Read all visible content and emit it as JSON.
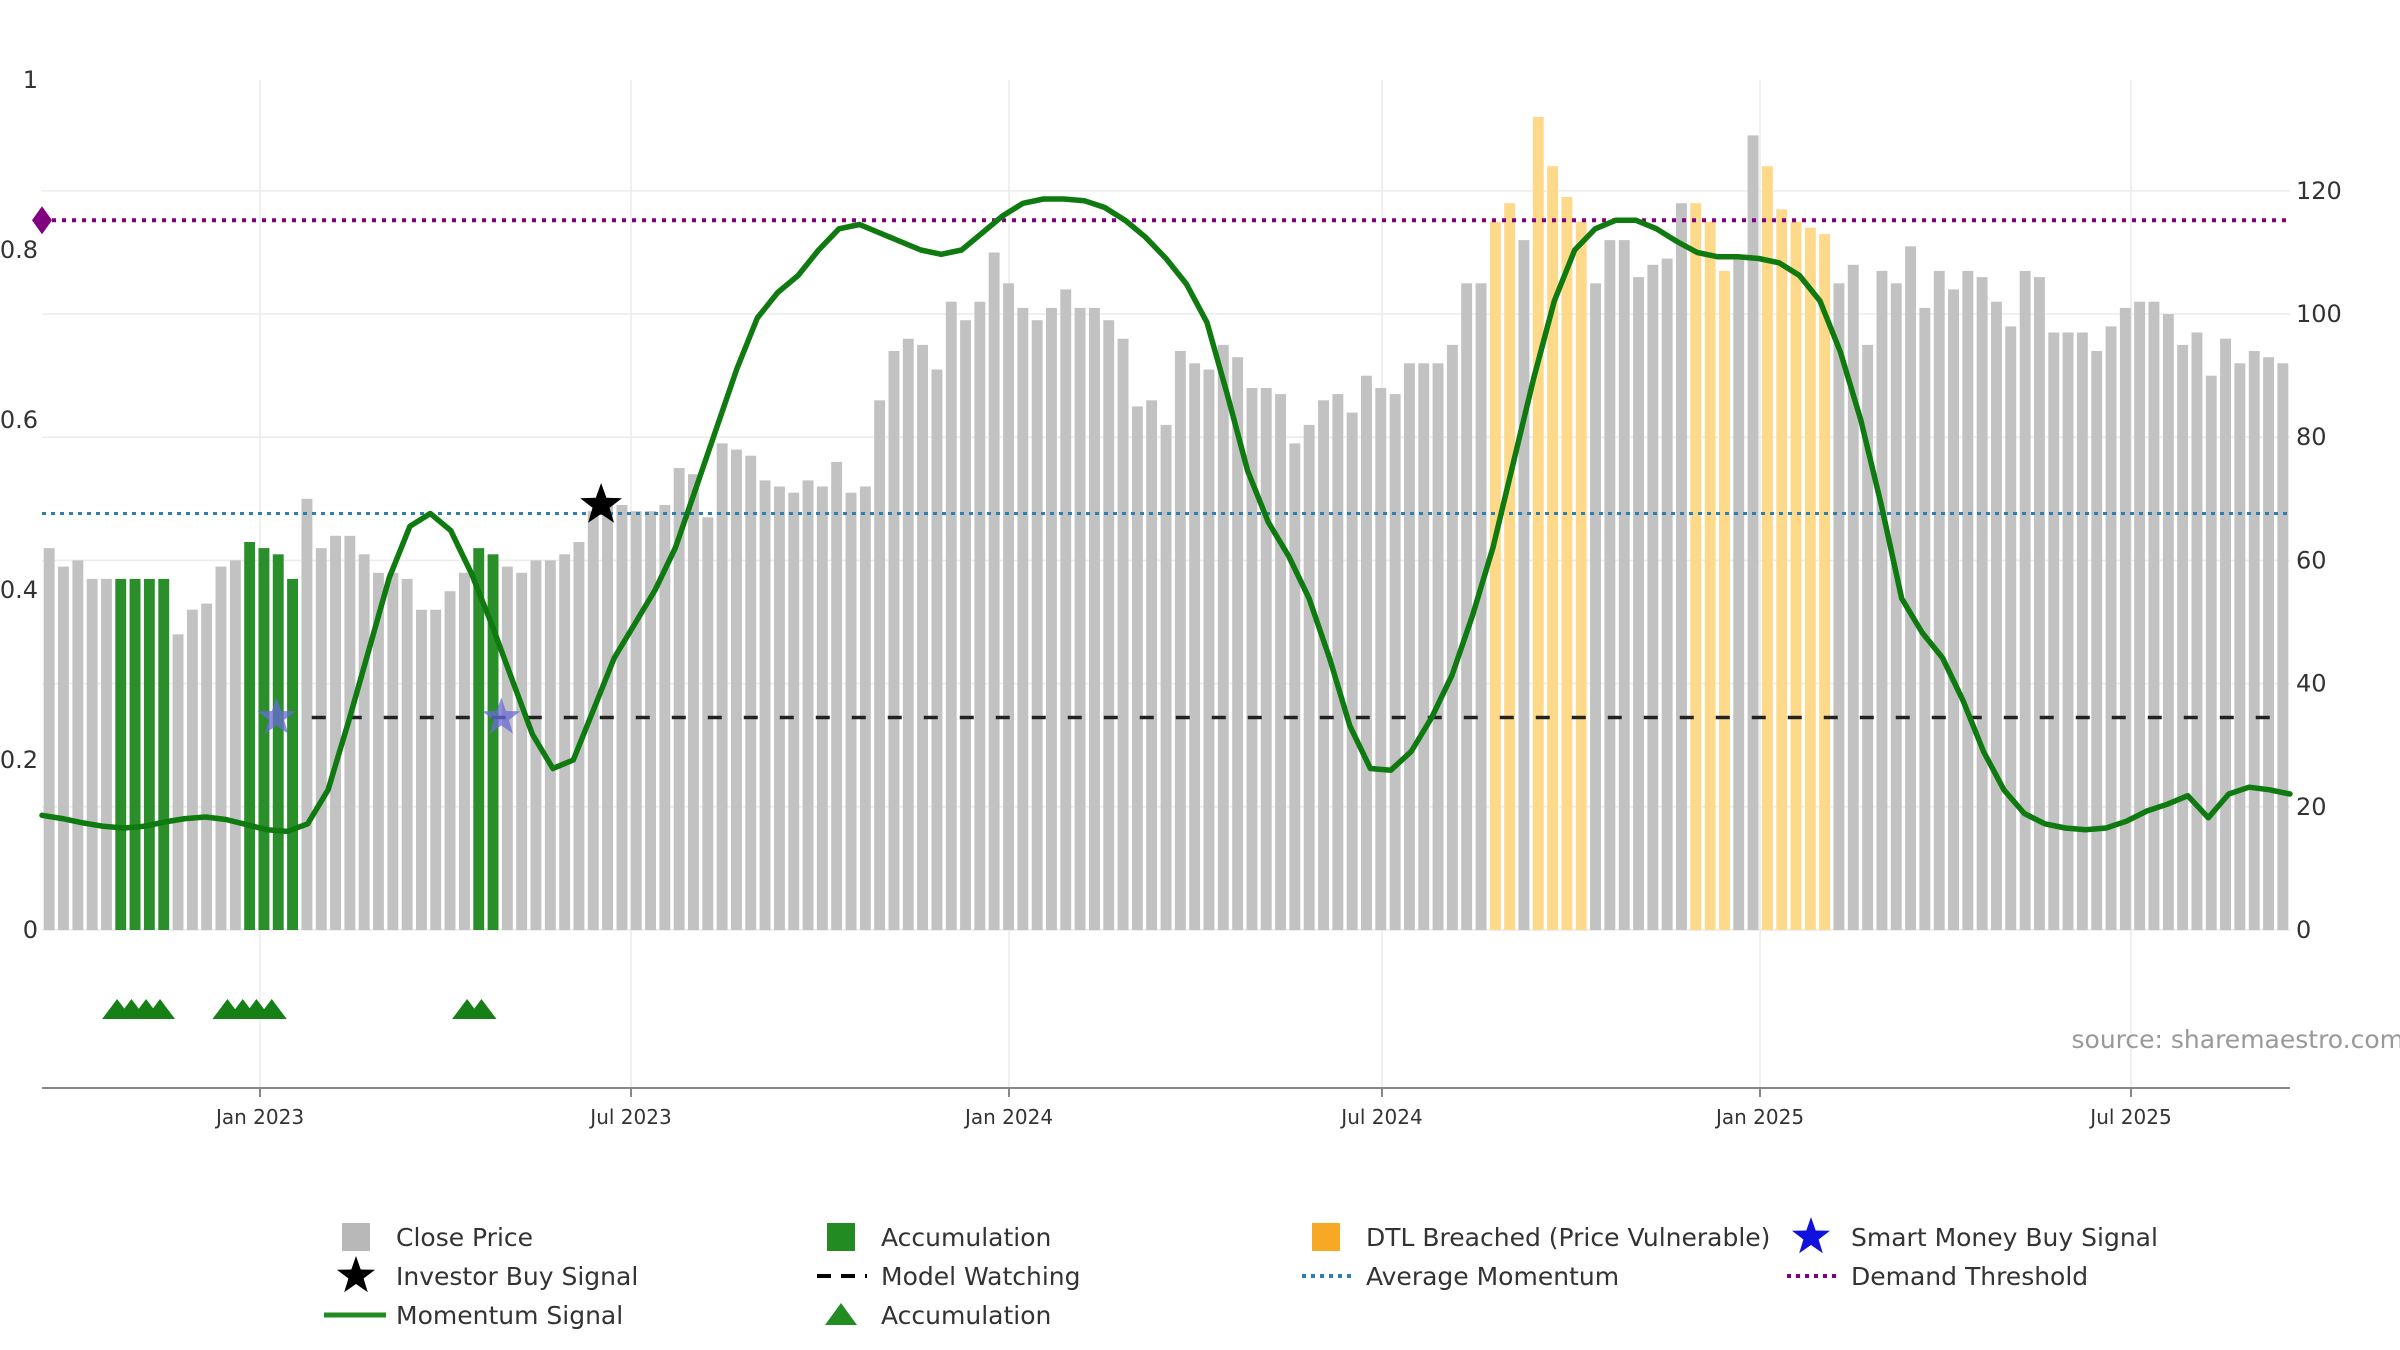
{
  "chart_data": {
    "type": "bar",
    "source": "source: sharemaestro.com",
    "left_axis": {
      "ylim": [
        0,
        1
      ],
      "ticks": [
        "0",
        "0.2",
        "0.4",
        "0.6",
        "0.8",
        "1"
      ]
    },
    "right_axis": {
      "ylim": [
        0,
        138
      ],
      "ticks": [
        "0",
        "20",
        "40",
        "60",
        "80",
        "100",
        "120"
      ]
    },
    "x_axis": {
      "ticks": [
        "Jan 2023",
        "Jul 2023",
        "Jan 2024",
        "Jul 2024",
        "Jan 2025",
        "Jul 2025"
      ]
    },
    "close_price": [
      62,
      59,
      60,
      57,
      57,
      57,
      57,
      57,
      57,
      48,
      52,
      53,
      59,
      60,
      63,
      62,
      61,
      57,
      70,
      62,
      64,
      64,
      61,
      58,
      58,
      57,
      52,
      52,
      55,
      58,
      62,
      61,
      59,
      58,
      60,
      60,
      61,
      63,
      68,
      69,
      69,
      68,
      68,
      69,
      75,
      74,
      67,
      79,
      78,
      77,
      73,
      72,
      71,
      73,
      72,
      76,
      71,
      72,
      86,
      94,
      96,
      95,
      91,
      102,
      99,
      102,
      110,
      105,
      101,
      99,
      101,
      104,
      101,
      101,
      99,
      96,
      85,
      86,
      82,
      94,
      92,
      91,
      95,
      93,
      88,
      88,
      87,
      79,
      82,
      86,
      87,
      84,
      90,
      88,
      87,
      92,
      92,
      92,
      95,
      105,
      105,
      115,
      118,
      112,
      132,
      124,
      119,
      115,
      105,
      112,
      112,
      106,
      108,
      109,
      118,
      118,
      115,
      107,
      109,
      129,
      124,
      117,
      115,
      114,
      113,
      105,
      108,
      95,
      107,
      105,
      111,
      101,
      107,
      104,
      107,
      106,
      102,
      98,
      107,
      106,
      97,
      97,
      97,
      94,
      98,
      101,
      102,
      102,
      100,
      95,
      97,
      90,
      96,
      92,
      94,
      93,
      92
    ],
    "price_category": [
      "gray",
      "gray",
      "gray",
      "gray",
      "gray",
      "green",
      "green",
      "green",
      "green",
      "gray",
      "gray",
      "gray",
      "gray",
      "gray",
      "green",
      "green",
      "green",
      "green",
      "gray",
      "gray",
      "gray",
      "gray",
      "gray",
      "gray",
      "gray",
      "gray",
      "gray",
      "gray",
      "gray",
      "gray",
      "green",
      "green",
      "gray",
      "gray",
      "gray",
      "gray",
      "gray",
      "gray",
      "gray",
      "gray",
      "gray",
      "gray",
      "gray",
      "gray",
      "gray",
      "gray",
      "gray",
      "gray",
      "gray",
      "gray",
      "gray",
      "gray",
      "gray",
      "gray",
      "gray",
      "gray",
      "gray",
      "gray",
      "gray",
      "gray",
      "gray",
      "gray",
      "gray",
      "gray",
      "gray",
      "gray",
      "gray",
      "gray",
      "gray",
      "gray",
      "gray",
      "gray",
      "gray",
      "gray",
      "gray",
      "gray",
      "gray",
      "gray",
      "gray",
      "gray",
      "gray",
      "gray",
      "gray",
      "gray",
      "gray",
      "gray",
      "gray",
      "gray",
      "gray",
      "gray",
      "gray",
      "gray",
      "gray",
      "gray",
      "gray",
      "gray",
      "gray",
      "gray",
      "gray",
      "gray",
      "gray",
      "orange",
      "orange",
      "gray",
      "orange",
      "orange",
      "orange",
      "orange",
      "gray",
      "gray",
      "gray",
      "gray",
      "gray",
      "gray",
      "gray",
      "orange",
      "orange",
      "orange",
      "gray",
      "gray",
      "orange",
      "orange",
      "orange",
      "orange",
      "orange",
      "gray",
      "gray",
      "gray",
      "gray",
      "gray",
      "gray",
      "gray",
      "gray",
      "gray",
      "gray",
      "gray",
      "gray",
      "gray",
      "gray",
      "gray",
      "gray",
      "gray",
      "gray",
      "gray",
      "gray",
      "gray",
      "gray",
      "gray",
      "gray",
      "gray",
      "gray",
      "gray",
      "gray",
      "gray",
      "gray",
      "gray",
      "gray"
    ],
    "momentum_signal": [
      0.135,
      0.131,
      0.126,
      0.122,
      0.12,
      0.122,
      0.127,
      0.131,
      0.133,
      0.13,
      0.124,
      0.118,
      0.116,
      0.125,
      0.165,
      0.245,
      0.33,
      0.415,
      0.475,
      0.49,
      0.47,
      0.42,
      0.36,
      0.295,
      0.23,
      0.19,
      0.2,
      0.26,
      0.32,
      0.36,
      0.4,
      0.45,
      0.52,
      0.59,
      0.66,
      0.72,
      0.75,
      0.77,
      0.8,
      0.825,
      0.83,
      0.82,
      0.81,
      0.8,
      0.795,
      0.8,
      0.82,
      0.84,
      0.855,
      0.86,
      0.86,
      0.858,
      0.85,
      0.835,
      0.815,
      0.79,
      0.76,
      0.715,
      0.63,
      0.54,
      0.48,
      0.44,
      0.39,
      0.32,
      0.24,
      0.19,
      0.188,
      0.21,
      0.25,
      0.3,
      0.37,
      0.45,
      0.55,
      0.65,
      0.74,
      0.8,
      0.825,
      0.835,
      0.835,
      0.825,
      0.81,
      0.797,
      0.792,
      0.792,
      0.79,
      0.785,
      0.77,
      0.74,
      0.68,
      0.6,
      0.5,
      0.39,
      0.35,
      0.32,
      0.27,
      0.21,
      0.165,
      0.137,
      0.125,
      0.12,
      0.118,
      0.12,
      0.128,
      0.14,
      0.148,
      0.158,
      0.132,
      0.16,
      0.168,
      0.165,
      0.16
    ],
    "investor_buy_signal": {
      "x": [
        0.2487
      ],
      "y": [
        0.5
      ]
    },
    "smart_money_buy_signal": {
      "x": [
        0.1043,
        0.2043
      ],
      "y": [
        0.25,
        0.25
      ]
    },
    "accumulation_markers_x": [
      0.0334,
      0.0398,
      0.0463,
      0.0525,
      0.0825,
      0.0893,
      0.0954,
      0.1022,
      0.1891,
      0.1955
    ],
    "model_watching": {
      "y": 0.25,
      "x_start": 0.12
    },
    "average_momentum": 0.49,
    "demand_threshold": 0.835,
    "legend": [
      {
        "label": "Close Price",
        "type": "square",
        "color": "#b8b8b8"
      },
      {
        "label": "Accumulation",
        "type": "square",
        "color": "#228b22"
      },
      {
        "label": "DTL Breached (Price Vulnerable)",
        "type": "square",
        "color": "#f7a825"
      },
      {
        "label": "Smart Money Buy Signal",
        "type": "star",
        "color": "#1111dd"
      },
      {
        "label": "Investor Buy Signal",
        "type": "star",
        "color": "#000000"
      },
      {
        "label": "Model Watching",
        "type": "dash",
        "color": "#000000"
      },
      {
        "label": "Average Momentum",
        "type": "dot",
        "color": "#2f7fae"
      },
      {
        "label": "Demand Threshold",
        "type": "dot",
        "color": "#800080"
      },
      {
        "label": "Momentum Signal",
        "type": "line",
        "color": "#228b22"
      },
      {
        "label": "Accumulation",
        "type": "triangle",
        "color": "#228b22"
      }
    ]
  },
  "colors": {
    "gray": "#c2c2c2",
    "green": "#2a8f2a",
    "orange": "#ffd98a",
    "momentum": "#0f7a0f",
    "avg_line": "#2f7fae",
    "threshold_line": "#800080",
    "model_line": "#222222"
  }
}
